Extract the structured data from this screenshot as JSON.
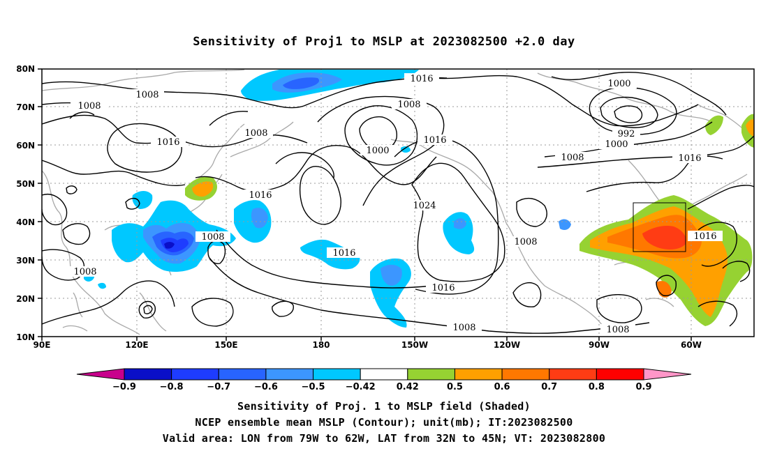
{
  "title": "Sensitivity of Proj1 to MSLP at 2023082500 +2.0 day",
  "map": {
    "lat_labels": [
      "80N",
      "70N",
      "60N",
      "50N",
      "40N",
      "30N",
      "20N",
      "10N"
    ],
    "lon_labels": [
      "90E",
      "120E",
      "150E",
      "180",
      "150W",
      "120W",
      "90W",
      "60W"
    ],
    "contour_labels": [
      {
        "text": "1008",
        "key": "c1"
      },
      {
        "text": "1008",
        "key": "c2"
      },
      {
        "text": "1016",
        "key": "c3"
      },
      {
        "text": "1008",
        "key": "c4"
      },
      {
        "text": "1016",
        "key": "c5"
      },
      {
        "text": "1008",
        "key": "c6"
      },
      {
        "text": "1000",
        "key": "c7"
      },
      {
        "text": "1016",
        "key": "c8"
      },
      {
        "text": "1000",
        "key": "c9"
      },
      {
        "text": "992",
        "key": "c10"
      },
      {
        "text": "1000",
        "key": "c11"
      },
      {
        "text": "1008",
        "key": "c12"
      },
      {
        "text": "1016",
        "key": "c13"
      },
      {
        "text": "1016",
        "key": "c14"
      },
      {
        "text": "1024",
        "key": "c15"
      },
      {
        "text": "1008",
        "key": "c16"
      },
      {
        "text": "1016",
        "key": "c17"
      },
      {
        "text": "1008",
        "key": "c18"
      },
      {
        "text": "1008",
        "key": "c19"
      },
      {
        "text": "1016",
        "key": "c20"
      },
      {
        "text": "1008",
        "key": "c21"
      },
      {
        "text": "1008",
        "key": "c22"
      },
      {
        "text": "1016",
        "key": "c23"
      }
    ],
    "valid_area": {
      "lon_from": "79W",
      "lon_to": "62W",
      "lat_from": "32N",
      "lat_to": "45N"
    }
  },
  "colorbar": {
    "labels": [
      "-0.9",
      "-0.8",
      "-0.7",
      "-0.6",
      "-0.5",
      "-0.42",
      "0.42",
      "0.5",
      "0.6",
      "0.7",
      "0.8",
      "0.9"
    ],
    "colors": [
      "#c8008c",
      "#0a0fc8",
      "#1e3cff",
      "#2864ff",
      "#3c96ff",
      "#00c8ff",
      "#ffffff",
      "#96d232",
      "#ffa000",
      "#ff7800",
      "#ff3c14",
      "#ff0000",
      "#ff96c8"
    ]
  },
  "caption": {
    "line1": "Sensitivity of Proj. 1 to MSLP field (Shaded)",
    "line2": "NCEP ensemble mean MSLP (Contour); unit(mb); IT:2023082500",
    "line3": "Valid area: LON from 79W to 62W, LAT from 32N to 45N; VT: 2023082800"
  }
}
